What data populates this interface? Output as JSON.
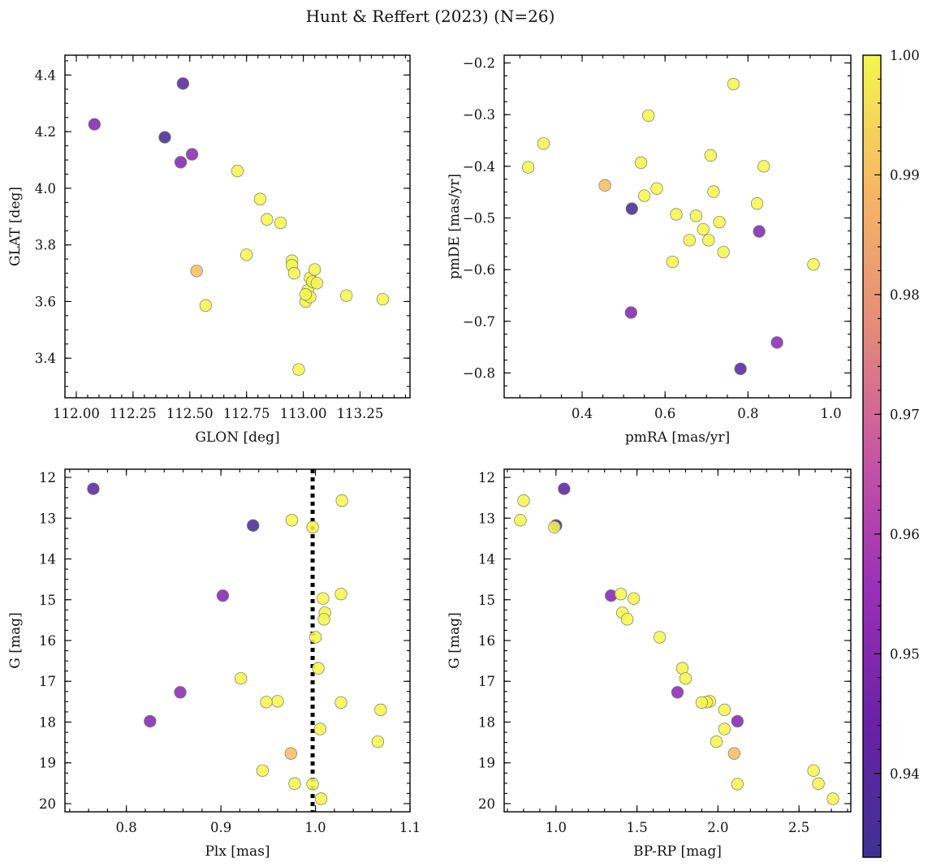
{
  "chart_data": {
    "title": "Hunt & Reffert (2023) (N=26)",
    "colorbar": {
      "range": [
        0.933,
        1.0
      ],
      "ticks": [
        0.94,
        0.95,
        0.96,
        0.97,
        0.98,
        0.99,
        1.0
      ],
      "tick_labels": [
        "0.94",
        "0.95",
        "0.96",
        "0.97",
        "0.98",
        "0.99",
        "1.00"
      ],
      "colormap": "plasma",
      "color_stops": [
        "#3e3193",
        "#6a21a6",
        "#9a2fb9",
        "#c955a4",
        "#e68d78",
        "#f7b765",
        "#f5f64c"
      ]
    },
    "stars": [
      {
        "glon": 112.08,
        "glat": 4.226,
        "pmra": 0.827,
        "pmde": -0.526,
        "plx": 0.902,
        "g": 14.9,
        "bprp": 1.34,
        "prob": 0.95
      },
      {
        "glon": 112.39,
        "glat": 4.18,
        "pmra": 0.52,
        "pmde": -0.482,
        "plx": 0.934,
        "g": 13.18,
        "bprp": 1.0,
        "prob": 0.935
      },
      {
        "glon": 112.47,
        "glat": 4.37,
        "pmra": 0.782,
        "pmde": -0.792,
        "plx": 0.765,
        "g": 12.28,
        "bprp": 1.05,
        "prob": 0.94
      },
      {
        "glon": 112.46,
        "glat": 4.092,
        "pmra": 0.518,
        "pmde": -0.683,
        "plx": 0.825,
        "g": 17.98,
        "bprp": 2.12,
        "prob": 0.95
      },
      {
        "glon": 112.51,
        "glat": 4.12,
        "pmra": 0.87,
        "pmde": -0.741,
        "plx": 0.857,
        "g": 17.27,
        "bprp": 1.75,
        "prob": 0.952
      },
      {
        "glon": 112.53,
        "glat": 3.708,
        "pmra": 0.455,
        "pmde": -0.437,
        "plx": 0.974,
        "g": 18.77,
        "bprp": 2.1,
        "prob": 0.99
      },
      {
        "glon": 112.57,
        "glat": 3.586,
        "pmra": 0.27,
        "pmde": -0.402,
        "plx": 1.028,
        "g": 12.57,
        "bprp": 0.8,
        "prob": 1.0
      },
      {
        "glon": 112.71,
        "glat": 4.061,
        "pmra": 0.307,
        "pmde": -0.356,
        "plx": 0.975,
        "g": 13.05,
        "bprp": 0.78,
        "prob": 1.0
      },
      {
        "glon": 112.75,
        "glat": 3.765,
        "pmra": 0.56,
        "pmde": -0.302,
        "plx": 0.997,
        "g": 13.22,
        "bprp": 0.99,
        "prob": 1.0
      },
      {
        "glon": 112.81,
        "glat": 3.962,
        "pmra": 0.765,
        "pmde": -0.241,
        "plx": 1.027,
        "g": 14.86,
        "bprp": 1.4,
        "prob": 1.0
      },
      {
        "glon": 112.84,
        "glat": 3.89,
        "pmra": 0.542,
        "pmde": -0.393,
        "plx": 1.008,
        "g": 14.97,
        "bprp": 1.48,
        "prob": 1.0
      },
      {
        "glon": 112.9,
        "glat": 3.878,
        "pmra": 0.71,
        "pmde": -0.379,
        "plx": 1.01,
        "g": 15.32,
        "bprp": 1.41,
        "prob": 1.0
      },
      {
        "glon": 112.95,
        "glat": 3.744,
        "pmra": 0.838,
        "pmde": -0.4,
        "plx": 1.009,
        "g": 15.48,
        "bprp": 1.44,
        "prob": 1.0
      },
      {
        "glon": 112.95,
        "glat": 3.728,
        "pmra": 0.55,
        "pmde": -0.457,
        "plx": 1.0,
        "g": 15.92,
        "bprp": 1.64,
        "prob": 1.0
      },
      {
        "glon": 113.01,
        "glat": 3.6,
        "pmra": 0.58,
        "pmde": -0.443,
        "plx": 1.003,
        "g": 16.68,
        "bprp": 1.78,
        "prob": 1.0
      },
      {
        "glon": 113.02,
        "glat": 3.64,
        "pmra": 0.717,
        "pmde": -0.449,
        "plx": 0.921,
        "g": 16.93,
        "bprp": 1.8,
        "prob": 1.0
      },
      {
        "glon": 113.03,
        "glat": 3.683,
        "pmra": 0.822,
        "pmde": -0.472,
        "plx": 0.96,
        "g": 17.49,
        "bprp": 1.95,
        "prob": 1.0
      },
      {
        "glon": 113.04,
        "glat": 3.67,
        "pmra": 0.627,
        "pmde": -0.493,
        "plx": 0.948,
        "g": 17.51,
        "bprp": 1.93,
        "prob": 1.0
      },
      {
        "glon": 113.03,
        "glat": 3.616,
        "pmra": 0.675,
        "pmde": -0.496,
        "plx": 1.027,
        "g": 17.52,
        "bprp": 1.9,
        "prob": 1.0
      },
      {
        "glon": 113.05,
        "glat": 3.713,
        "pmra": 0.731,
        "pmde": -0.508,
        "plx": 1.069,
        "g": 17.7,
        "bprp": 2.04,
        "prob": 1.0
      },
      {
        "glon": 113.06,
        "glat": 3.665,
        "pmra": 0.692,
        "pmde": -0.522,
        "plx": 1.005,
        "g": 18.17,
        "bprp": 2.04,
        "prob": 1.0
      },
      {
        "glon": 113.19,
        "glat": 3.621,
        "pmra": 0.659,
        "pmde": -0.543,
        "plx": 1.066,
        "g": 18.48,
        "bprp": 1.99,
        "prob": 1.0
      },
      {
        "glon": 113.35,
        "glat": 3.608,
        "pmra": 0.705,
        "pmde": -0.543,
        "plx": 0.944,
        "g": 19.19,
        "bprp": 2.59,
        "prob": 1.0
      },
      {
        "glon": 112.98,
        "glat": 3.36,
        "pmra": 0.741,
        "pmde": -0.566,
        "plx": 0.978,
        "g": 19.51,
        "bprp": 2.62,
        "prob": 1.0
      },
      {
        "glon": 113.01,
        "glat": 3.625,
        "pmra": 0.618,
        "pmde": -0.585,
        "plx": 0.997,
        "g": 19.52,
        "bprp": 2.12,
        "prob": 1.0
      },
      {
        "glon": 112.96,
        "glat": 3.7,
        "pmra": 0.958,
        "pmde": -0.59,
        "plx": 1.006,
        "g": 19.88,
        "bprp": 2.71,
        "prob": 1.0
      }
    ],
    "panels": [
      {
        "id": "glon-glat",
        "type": "scatter",
        "xkey": "glon",
        "ykey": "glat",
        "xlabel": "GLON [deg]",
        "ylabel": "GLAT [deg]",
        "xlim": [
          111.95,
          113.47
        ],
        "ylim": [
          3.26,
          4.47
        ],
        "yinvert": false,
        "xticks": [
          112.0,
          112.25,
          112.5,
          112.75,
          113.0,
          113.25
        ],
        "xtick_labels": [
          "112.00",
          "112.25",
          "112.50",
          "112.75",
          "113.00",
          "113.25"
        ],
        "yticks": [
          3.4,
          3.6,
          3.8,
          4.0,
          4.2,
          4.4
        ],
        "ytick_labels": [
          "3.4",
          "3.6",
          "3.8",
          "4.0",
          "4.2",
          "4.4"
        ],
        "xminor": 0.05,
        "yminor": 0.05
      },
      {
        "id": "pm",
        "type": "scatter",
        "xkey": "pmra",
        "ykey": "pmde",
        "xlabel": "pmRA [mas/yr]",
        "ylabel": "pmDE [mas/yr]",
        "xlim": [
          0.212,
          1.048
        ],
        "ylim": [
          -0.848,
          -0.185
        ],
        "yinvert": false,
        "xticks": [
          0.4,
          0.6,
          0.8,
          1.0
        ],
        "xtick_labels": [
          "0.4",
          "0.6",
          "0.8",
          "1.0"
        ],
        "yticks": [
          -0.8,
          -0.7,
          -0.6,
          -0.5,
          -0.4,
          -0.3,
          -0.2
        ],
        "ytick_labels": [
          "−0.8",
          "−0.7",
          "−0.6",
          "−0.5",
          "−0.4",
          "−0.3",
          "−0.2"
        ],
        "xminor": 0.05,
        "yminor": 0.025
      },
      {
        "id": "plx-g",
        "type": "scatter",
        "xkey": "plx",
        "ykey": "g",
        "xlabel": "Plx [mas]",
        "ylabel": "G [mag]",
        "xlim": [
          0.735,
          1.1
        ],
        "ylim": [
          11.8,
          20.2
        ],
        "yinvert": true,
        "xticks": [
          0.8,
          0.9,
          1.0,
          1.1
        ],
        "xtick_labels": [
          "0.8",
          "0.9",
          "1.0",
          "1.1"
        ],
        "yticks": [
          12,
          13,
          14,
          15,
          16,
          17,
          18,
          19,
          20
        ],
        "ytick_labels": [
          "12",
          "13",
          "14",
          "15",
          "16",
          "17",
          "18",
          "19",
          "20"
        ],
        "xminor": 0.02,
        "yminor": 0.25,
        "reference_line_x": 0.997
      },
      {
        "id": "cmd",
        "type": "scatter",
        "xkey": "bprp",
        "ykey": "g",
        "xlabel": "BP-RP [mag]",
        "ylabel": "G [mag]",
        "xlim": [
          0.68,
          2.82
        ],
        "ylim": [
          11.8,
          20.2
        ],
        "yinvert": true,
        "xticks": [
          1.0,
          1.5,
          2.0,
          2.5
        ],
        "xtick_labels": [
          "1.0",
          "1.5",
          "2.0",
          "2.5"
        ],
        "yticks": [
          12,
          13,
          14,
          15,
          16,
          17,
          18,
          19,
          20
        ],
        "ytick_labels": [
          "12",
          "13",
          "14",
          "15",
          "16",
          "17",
          "18",
          "19",
          "20"
        ],
        "xminor": 0.1,
        "yminor": 0.25
      }
    ]
  }
}
